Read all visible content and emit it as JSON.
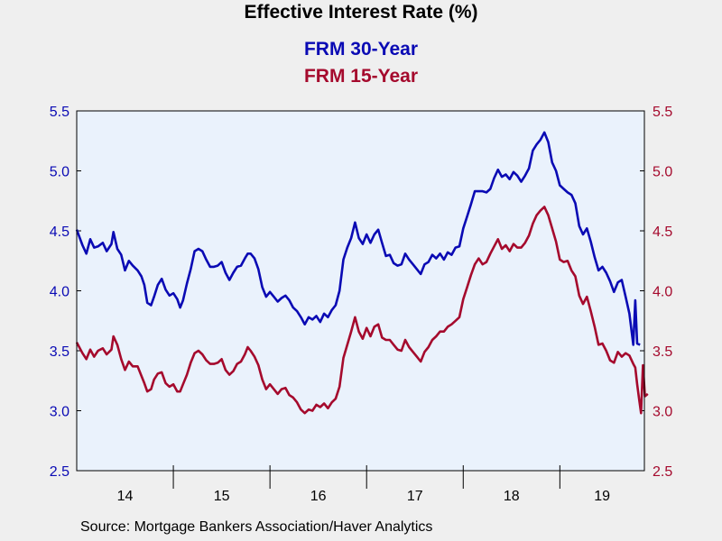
{
  "colors": {
    "series_30": "#0a0ab4",
    "series_15": "#a50a2d",
    "plot_bg": "#eaf2fc"
  },
  "source": "Source:  Mortgage Bankers Association/Haver Analytics",
  "chart_data": {
    "type": "line",
    "title": "Effective Interest Rate (%)",
    "xlabel": "",
    "ylabel": "",
    "ylim": [
      2.5,
      5.5
    ],
    "yticks": [
      "2.5",
      "3.0",
      "3.5",
      "4.0",
      "4.5",
      "5.0",
      "5.5"
    ],
    "xlim": [
      2014.0,
      2019.8
    ],
    "year_labels": [
      "14",
      "15",
      "16",
      "17",
      "18",
      "19"
    ],
    "grid": false,
    "legend": "top-center",
    "dual_axis": true,
    "series": [
      {
        "name": "FRM 30-Year",
        "color": "#0a0ab4",
        "axis": "left",
        "points": [
          [
            2014.0,
            4.51
          ],
          [
            2014.06,
            4.38
          ],
          [
            2014.1,
            4.31
          ],
          [
            2014.14,
            4.43
          ],
          [
            2014.18,
            4.36
          ],
          [
            2014.22,
            4.37
          ],
          [
            2014.27,
            4.4
          ],
          [
            2014.31,
            4.33
          ],
          [
            2014.36,
            4.39
          ],
          [
            2014.38,
            4.49
          ],
          [
            2014.42,
            4.35
          ],
          [
            2014.46,
            4.3
          ],
          [
            2014.5,
            4.17
          ],
          [
            2014.54,
            4.25
          ],
          [
            2014.58,
            4.21
          ],
          [
            2014.63,
            4.17
          ],
          [
            2014.67,
            4.12
          ],
          [
            2014.7,
            4.05
          ],
          [
            2014.73,
            3.9
          ],
          [
            2014.77,
            3.88
          ],
          [
            2014.8,
            3.95
          ],
          [
            2014.84,
            4.05
          ],
          [
            2014.88,
            4.1
          ],
          [
            2014.92,
            4.01
          ],
          [
            2014.96,
            3.96
          ],
          [
            2015.0,
            3.98
          ],
          [
            2015.04,
            3.93
          ],
          [
            2015.07,
            3.86
          ],
          [
            2015.1,
            3.92
          ],
          [
            2015.14,
            4.06
          ],
          [
            2015.18,
            4.18
          ],
          [
            2015.22,
            4.33
          ],
          [
            2015.26,
            4.35
          ],
          [
            2015.3,
            4.33
          ],
          [
            2015.34,
            4.26
          ],
          [
            2015.38,
            4.2
          ],
          [
            2015.42,
            4.2
          ],
          [
            2015.46,
            4.21
          ],
          [
            2015.5,
            4.24
          ],
          [
            2015.54,
            4.15
          ],
          [
            2015.58,
            4.09
          ],
          [
            2015.62,
            4.15
          ],
          [
            2015.66,
            4.2
          ],
          [
            2015.7,
            4.21
          ],
          [
            2015.74,
            4.27
          ],
          [
            2015.77,
            4.31
          ],
          [
            2015.8,
            4.31
          ],
          [
            2015.84,
            4.27
          ],
          [
            2015.88,
            4.18
          ],
          [
            2015.92,
            4.03
          ],
          [
            2015.96,
            3.95
          ],
          [
            2016.0,
            3.99
          ],
          [
            2016.04,
            3.95
          ],
          [
            2016.08,
            3.91
          ],
          [
            2016.12,
            3.94
          ],
          [
            2016.16,
            3.96
          ],
          [
            2016.2,
            3.92
          ],
          [
            2016.24,
            3.86
          ],
          [
            2016.28,
            3.83
          ],
          [
            2016.32,
            3.78
          ],
          [
            2016.36,
            3.72
          ],
          [
            2016.4,
            3.78
          ],
          [
            2016.44,
            3.76
          ],
          [
            2016.48,
            3.79
          ],
          [
            2016.52,
            3.74
          ],
          [
            2016.56,
            3.81
          ],
          [
            2016.6,
            3.78
          ],
          [
            2016.64,
            3.84
          ],
          [
            2016.68,
            3.88
          ],
          [
            2016.72,
            4.0
          ],
          [
            2016.76,
            4.26
          ],
          [
            2016.8,
            4.36
          ],
          [
            2016.84,
            4.44
          ],
          [
            2016.88,
            4.57
          ],
          [
            2016.92,
            4.44
          ],
          [
            2016.96,
            4.39
          ],
          [
            2017.0,
            4.47
          ],
          [
            2017.04,
            4.4
          ],
          [
            2017.08,
            4.47
          ],
          [
            2017.12,
            4.51
          ],
          [
            2017.16,
            4.4
          ],
          [
            2017.2,
            4.29
          ],
          [
            2017.24,
            4.3
          ],
          [
            2017.28,
            4.23
          ],
          [
            2017.32,
            4.21
          ],
          [
            2017.36,
            4.22
          ],
          [
            2017.4,
            4.31
          ],
          [
            2017.44,
            4.26
          ],
          [
            2017.48,
            4.22
          ],
          [
            2017.52,
            4.18
          ],
          [
            2017.56,
            4.14
          ],
          [
            2017.6,
            4.22
          ],
          [
            2017.64,
            4.24
          ],
          [
            2017.68,
            4.3
          ],
          [
            2017.72,
            4.27
          ],
          [
            2017.76,
            4.31
          ],
          [
            2017.8,
            4.26
          ],
          [
            2017.84,
            4.32
          ],
          [
            2017.88,
            4.3
          ],
          [
            2017.92,
            4.36
          ],
          [
            2017.96,
            4.37
          ],
          [
            2018.0,
            4.52
          ],
          [
            2018.04,
            4.62
          ],
          [
            2018.08,
            4.72
          ],
          [
            2018.12,
            4.83
          ],
          [
            2018.2,
            4.83
          ],
          [
            2018.24,
            4.82
          ],
          [
            2018.28,
            4.85
          ],
          [
            2018.32,
            4.94
          ],
          [
            2018.36,
            5.01
          ],
          [
            2018.4,
            4.95
          ],
          [
            2018.44,
            4.97
          ],
          [
            2018.48,
            4.93
          ],
          [
            2018.52,
            4.99
          ],
          [
            2018.56,
            4.96
          ],
          [
            2018.6,
            4.91
          ],
          [
            2018.64,
            4.96
          ],
          [
            2018.68,
            5.02
          ],
          [
            2018.72,
            5.17
          ],
          [
            2018.76,
            5.22
          ],
          [
            2018.8,
            5.26
          ],
          [
            2018.84,
            5.32
          ],
          [
            2018.88,
            5.24
          ],
          [
            2018.92,
            5.07
          ],
          [
            2018.96,
            5.0
          ],
          [
            2019.0,
            4.88
          ],
          [
            2019.04,
            4.85
          ],
          [
            2019.08,
            4.82
          ],
          [
            2019.12,
            4.8
          ],
          [
            2019.16,
            4.73
          ],
          [
            2019.2,
            4.54
          ],
          [
            2019.24,
            4.47
          ],
          [
            2019.28,
            4.52
          ],
          [
            2019.32,
            4.41
          ],
          [
            2019.36,
            4.28
          ],
          [
            2019.4,
            4.17
          ],
          [
            2019.44,
            4.2
          ],
          [
            2019.48,
            4.15
          ],
          [
            2019.52,
            4.08
          ],
          [
            2019.56,
            3.99
          ],
          [
            2019.6,
            4.07
          ],
          [
            2019.64,
            4.09
          ],
          [
            2019.68,
            3.95
          ],
          [
            2019.72,
            3.81
          ],
          [
            2019.76,
            3.55
          ],
          [
            2019.78,
            3.92
          ],
          [
            2019.8,
            3.56
          ],
          [
            2019.83,
            3.55
          ]
        ]
      },
      {
        "name": "FRM 15-Year",
        "color": "#a50a2d",
        "axis": "right",
        "points": [
          [
            2014.0,
            3.57
          ],
          [
            2014.06,
            3.48
          ],
          [
            2014.1,
            3.43
          ],
          [
            2014.14,
            3.51
          ],
          [
            2014.18,
            3.45
          ],
          [
            2014.22,
            3.5
          ],
          [
            2014.27,
            3.52
          ],
          [
            2014.31,
            3.47
          ],
          [
            2014.36,
            3.51
          ],
          [
            2014.38,
            3.62
          ],
          [
            2014.42,
            3.55
          ],
          [
            2014.46,
            3.43
          ],
          [
            2014.5,
            3.34
          ],
          [
            2014.54,
            3.41
          ],
          [
            2014.58,
            3.37
          ],
          [
            2014.63,
            3.37
          ],
          [
            2014.67,
            3.29
          ],
          [
            2014.7,
            3.23
          ],
          [
            2014.73,
            3.16
          ],
          [
            2014.77,
            3.18
          ],
          [
            2014.8,
            3.26
          ],
          [
            2014.84,
            3.31
          ],
          [
            2014.88,
            3.32
          ],
          [
            2014.92,
            3.23
          ],
          [
            2014.96,
            3.2
          ],
          [
            2015.0,
            3.22
          ],
          [
            2015.04,
            3.16
          ],
          [
            2015.07,
            3.16
          ],
          [
            2015.1,
            3.22
          ],
          [
            2015.14,
            3.3
          ],
          [
            2015.18,
            3.4
          ],
          [
            2015.22,
            3.48
          ],
          [
            2015.26,
            3.5
          ],
          [
            2015.3,
            3.47
          ],
          [
            2015.34,
            3.42
          ],
          [
            2015.38,
            3.39
          ],
          [
            2015.42,
            3.39
          ],
          [
            2015.46,
            3.4
          ],
          [
            2015.5,
            3.43
          ],
          [
            2015.54,
            3.34
          ],
          [
            2015.58,
            3.3
          ],
          [
            2015.62,
            3.33
          ],
          [
            2015.66,
            3.39
          ],
          [
            2015.7,
            3.41
          ],
          [
            2015.74,
            3.47
          ],
          [
            2015.77,
            3.53
          ],
          [
            2015.8,
            3.5
          ],
          [
            2015.84,
            3.45
          ],
          [
            2015.88,
            3.38
          ],
          [
            2015.92,
            3.26
          ],
          [
            2015.96,
            3.18
          ],
          [
            2016.0,
            3.22
          ],
          [
            2016.04,
            3.18
          ],
          [
            2016.08,
            3.14
          ],
          [
            2016.12,
            3.18
          ],
          [
            2016.16,
            3.19
          ],
          [
            2016.2,
            3.13
          ],
          [
            2016.24,
            3.11
          ],
          [
            2016.28,
            3.07
          ],
          [
            2016.32,
            3.01
          ],
          [
            2016.36,
            2.98
          ],
          [
            2016.4,
            3.01
          ],
          [
            2016.44,
            3.0
          ],
          [
            2016.48,
            3.05
          ],
          [
            2016.52,
            3.03
          ],
          [
            2016.56,
            3.06
          ],
          [
            2016.6,
            3.02
          ],
          [
            2016.64,
            3.07
          ],
          [
            2016.68,
            3.1
          ],
          [
            2016.72,
            3.2
          ],
          [
            2016.76,
            3.44
          ],
          [
            2016.8,
            3.55
          ],
          [
            2016.84,
            3.66
          ],
          [
            2016.88,
            3.78
          ],
          [
            2016.92,
            3.66
          ],
          [
            2016.96,
            3.6
          ],
          [
            2017.0,
            3.69
          ],
          [
            2017.04,
            3.62
          ],
          [
            2017.08,
            3.7
          ],
          [
            2017.12,
            3.72
          ],
          [
            2017.16,
            3.61
          ],
          [
            2017.2,
            3.59
          ],
          [
            2017.24,
            3.59
          ],
          [
            2017.28,
            3.55
          ],
          [
            2017.32,
            3.51
          ],
          [
            2017.36,
            3.5
          ],
          [
            2017.4,
            3.59
          ],
          [
            2017.44,
            3.53
          ],
          [
            2017.48,
            3.49
          ],
          [
            2017.52,
            3.45
          ],
          [
            2017.56,
            3.41
          ],
          [
            2017.6,
            3.49
          ],
          [
            2017.64,
            3.53
          ],
          [
            2017.68,
            3.59
          ],
          [
            2017.72,
            3.62
          ],
          [
            2017.76,
            3.66
          ],
          [
            2017.8,
            3.66
          ],
          [
            2017.84,
            3.7
          ],
          [
            2017.88,
            3.72
          ],
          [
            2017.92,
            3.75
          ],
          [
            2017.96,
            3.78
          ],
          [
            2018.0,
            3.93
          ],
          [
            2018.04,
            4.03
          ],
          [
            2018.08,
            4.13
          ],
          [
            2018.12,
            4.22
          ],
          [
            2018.16,
            4.27
          ],
          [
            2018.2,
            4.22
          ],
          [
            2018.24,
            4.24
          ],
          [
            2018.28,
            4.31
          ],
          [
            2018.32,
            4.37
          ],
          [
            2018.36,
            4.43
          ],
          [
            2018.4,
            4.35
          ],
          [
            2018.44,
            4.38
          ],
          [
            2018.48,
            4.33
          ],
          [
            2018.52,
            4.39
          ],
          [
            2018.56,
            4.36
          ],
          [
            2018.6,
            4.36
          ],
          [
            2018.64,
            4.4
          ],
          [
            2018.68,
            4.46
          ],
          [
            2018.72,
            4.56
          ],
          [
            2018.76,
            4.63
          ],
          [
            2018.8,
            4.67
          ],
          [
            2018.84,
            4.7
          ],
          [
            2018.88,
            4.63
          ],
          [
            2018.92,
            4.52
          ],
          [
            2018.96,
            4.41
          ],
          [
            2019.0,
            4.26
          ],
          [
            2019.04,
            4.24
          ],
          [
            2019.08,
            4.25
          ],
          [
            2019.12,
            4.17
          ],
          [
            2019.16,
            4.12
          ],
          [
            2019.2,
            3.96
          ],
          [
            2019.24,
            3.89
          ],
          [
            2019.28,
            3.95
          ],
          [
            2019.32,
            3.83
          ],
          [
            2019.36,
            3.7
          ],
          [
            2019.4,
            3.55
          ],
          [
            2019.44,
            3.56
          ],
          [
            2019.48,
            3.5
          ],
          [
            2019.52,
            3.42
          ],
          [
            2019.56,
            3.4
          ],
          [
            2019.6,
            3.49
          ],
          [
            2019.64,
            3.45
          ],
          [
            2019.68,
            3.48
          ],
          [
            2019.72,
            3.46
          ],
          [
            2019.76,
            3.39
          ],
          [
            2019.78,
            3.36
          ],
          [
            2019.8,
            3.22
          ],
          [
            2019.82,
            3.1
          ],
          [
            2019.84,
            2.98
          ],
          [
            2019.86,
            3.38
          ],
          [
            2019.88,
            3.12
          ],
          [
            2019.91,
            3.14
          ]
        ]
      }
    ]
  }
}
